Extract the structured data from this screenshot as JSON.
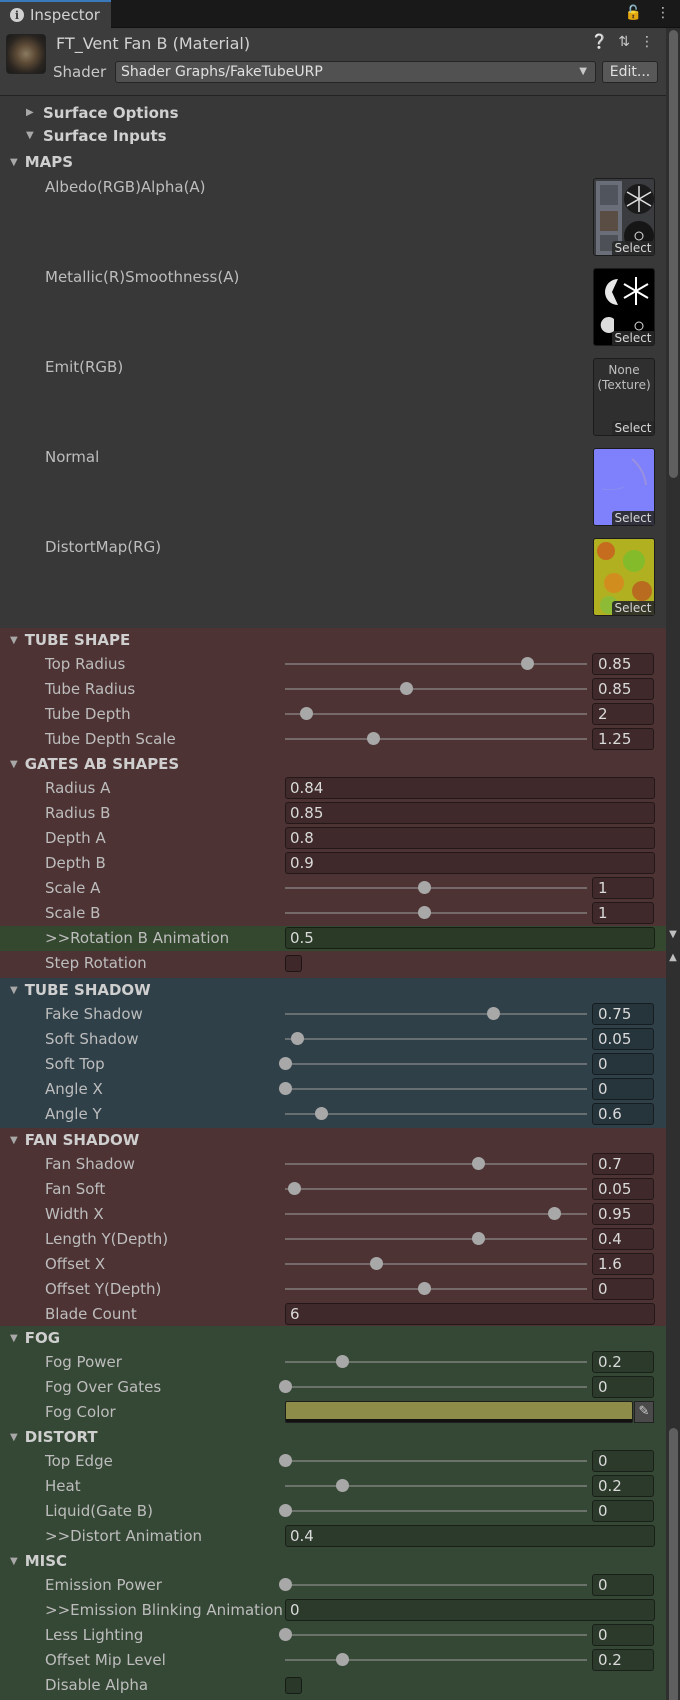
{
  "tab": {
    "label": "Inspector"
  },
  "header": {
    "title": "FT_Vent Fan B (Material)",
    "shader_label": "Shader",
    "shader_value": "Shader Graphs/FakeTubeURP",
    "edit_label": "Edit..."
  },
  "foldouts": {
    "surface_options": "Surface Options",
    "surface_inputs": "Surface Inputs"
  },
  "maps": {
    "title": "MAPS",
    "items": [
      {
        "label": "Albedo(RGB)Alpha(A)",
        "select": "Select"
      },
      {
        "label": "Metallic(R)Smoothness(A)",
        "select": "Select"
      },
      {
        "label": "Emit(RGB)",
        "select": "Select",
        "none_text": "None\n(Texture)"
      },
      {
        "label": "Normal",
        "select": "Select"
      },
      {
        "label": "DistortMap(RG)",
        "select": "Select"
      }
    ]
  },
  "tube_shape": {
    "title": "TUBE SHAPE",
    "rows": [
      {
        "label": "Top Radius",
        "value": "0.85",
        "slider": 0.8
      },
      {
        "label": "Tube Radius",
        "value": "0.85",
        "slider": 0.4
      },
      {
        "label": "Tube Depth",
        "value": "2",
        "slider": 0.07
      },
      {
        "label": "Tube Depth Scale",
        "value": "1.25",
        "slider": 0.29
      }
    ]
  },
  "gates": {
    "title": "GATES AB SHAPES",
    "fields": [
      {
        "label": "Radius A",
        "value": "0.84"
      },
      {
        "label": "Radius B",
        "value": "0.85"
      },
      {
        "label": "Depth A",
        "value": "0.8"
      },
      {
        "label": "Depth B",
        "value": "0.9"
      }
    ],
    "sliders": [
      {
        "label": "Scale A",
        "value": "1",
        "slider": 0.46
      },
      {
        "label": "Scale B",
        "value": "1",
        "slider": 0.46
      }
    ],
    "rotation": {
      "label": ">>Rotation B Animation",
      "value": "0.5"
    },
    "step": {
      "label": "Step Rotation"
    }
  },
  "tube_shadow": {
    "title": "TUBE SHADOW",
    "rows": [
      {
        "label": "Fake Shadow",
        "value": "0.75",
        "slider": 0.69
      },
      {
        "label": "Soft Shadow",
        "value": "0.05",
        "slider": 0.04
      },
      {
        "label": "Soft Top",
        "value": "0",
        "slider": 0.0
      },
      {
        "label": "Angle X",
        "value": "0",
        "slider": 0.0
      },
      {
        "label": "Angle Y",
        "value": "0.6",
        "slider": 0.12
      }
    ]
  },
  "fan_shadow": {
    "title": "FAN SHADOW",
    "rows": [
      {
        "label": "Fan Shadow",
        "value": "0.7",
        "slider": 0.64
      },
      {
        "label": "Fan Soft",
        "value": "0.05",
        "slider": 0.03
      },
      {
        "label": "Width X",
        "value": "0.95",
        "slider": 0.89
      },
      {
        "label": "Length Y(Depth)",
        "value": "0.4",
        "slider": 0.64
      },
      {
        "label": "Offset X",
        "value": "1.6",
        "slider": 0.3
      },
      {
        "label": "Offset Y(Depth)",
        "value": "0",
        "slider": 0.46
      }
    ],
    "blade": {
      "label": "Blade Count",
      "value": "6"
    }
  },
  "fog": {
    "title": "FOG",
    "rows": [
      {
        "label": "Fog Power",
        "value": "0.2",
        "slider": 0.19
      },
      {
        "label": "Fog Over Gates",
        "value": "0",
        "slider": 0.0
      }
    ],
    "color": {
      "label": "Fog Color",
      "hex": "#8e8c49"
    }
  },
  "distort": {
    "title": "DISTORT",
    "rows": [
      {
        "label": "Top Edge",
        "value": "0",
        "slider": 0.0
      },
      {
        "label": "Heat",
        "value": "0.2",
        "slider": 0.19
      },
      {
        "label": "Liquid(Gate B)",
        "value": "0",
        "slider": 0.0
      }
    ],
    "anim": {
      "label": ">>Distort Animation",
      "value": "0.4"
    }
  },
  "misc": {
    "title": "MISC",
    "rows": [
      {
        "label": "Emission Power",
        "value": "0",
        "slider": 0.0
      }
    ],
    "blink": {
      "label": ">>Emission Blinking Animation",
      "value": "0"
    },
    "rows2": [
      {
        "label": "Less Lighting",
        "value": "0",
        "slider": 0.0
      },
      {
        "label": "Offset Mip Level",
        "value": "0.2",
        "slider": 0.19
      }
    ],
    "disable": {
      "label": "Disable Alpha"
    }
  },
  "colors": {
    "red_section": "#4e3334",
    "blue_section": "#2f4049",
    "green_section": "#354735",
    "green_row": "#34472f"
  }
}
